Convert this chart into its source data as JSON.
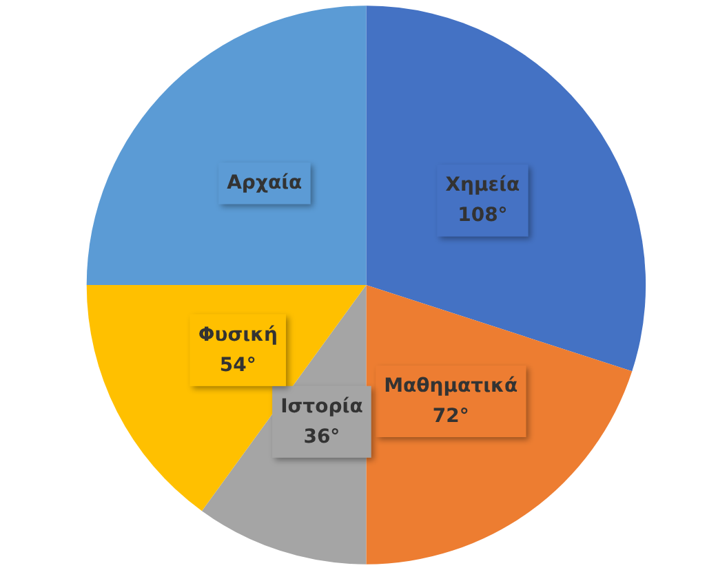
{
  "chart_data": {
    "type": "pie",
    "categories": [
      "Χημεία",
      "Μαθηματικά",
      "Ιστορία",
      "Φυσική",
      "Αρχαία"
    ],
    "values": [
      108,
      72,
      36,
      54,
      90
    ],
    "value_labels": [
      "108°",
      "72°",
      "36°",
      "54°",
      null
    ],
    "colors": [
      "#4472c4",
      "#ed7d31",
      "#a5a5a5",
      "#ffc000",
      "#5b9bd5"
    ],
    "legend": false
  }
}
